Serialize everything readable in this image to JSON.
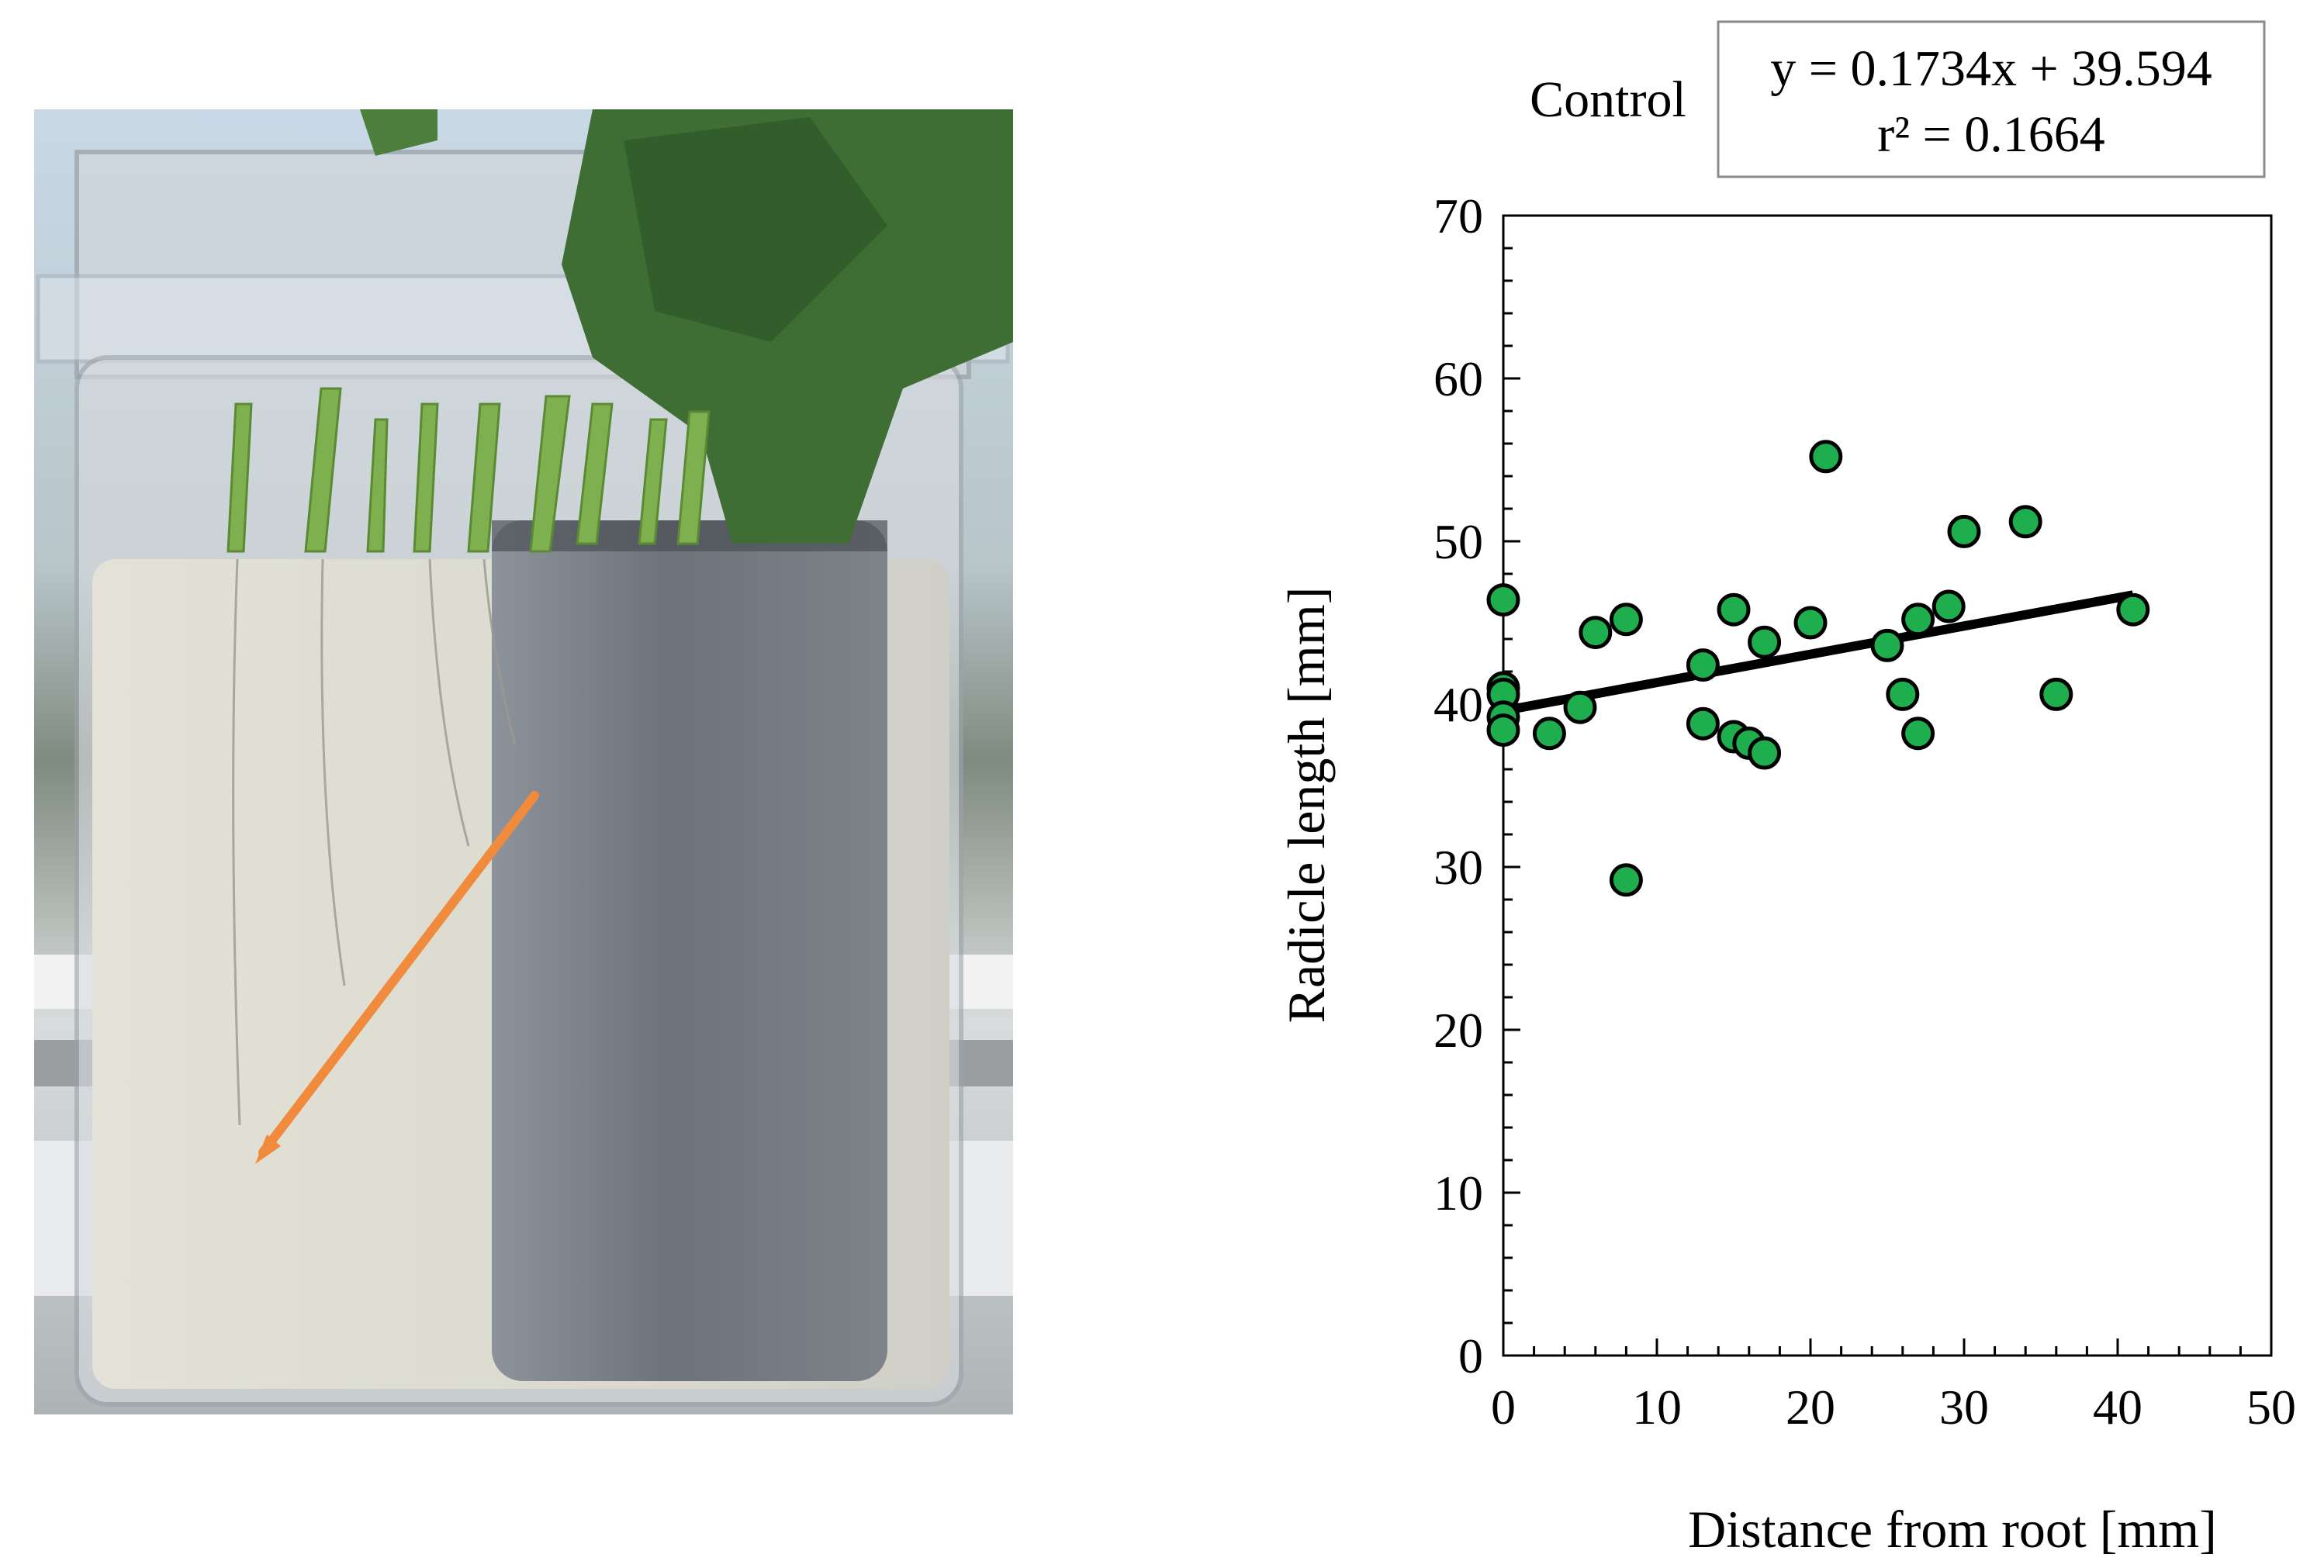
{
  "photo": {
    "description_icon": "hydroponic-seedling-container-photo",
    "arrow_color": "#f08a3c"
  },
  "chart_data": {
    "type": "scatter",
    "label": "Control",
    "equation": "y = 0.1734x + 39.594",
    "r_squared": "r² = 0.1664",
    "xlabel": "Distance from root [mm]",
    "ylabel": "Radicle length [mm]",
    "xlim": [
      0,
      50
    ],
    "ylim": [
      0,
      70
    ],
    "xticks": [
      0,
      10,
      20,
      30,
      40,
      50
    ],
    "yticks": [
      0,
      10,
      20,
      30,
      40,
      50,
      60,
      70
    ],
    "x_minor_step": 2,
    "y_minor_step": 2,
    "grid": false,
    "marker_color": "#1fae4e",
    "marker_edge": "#000000",
    "trendline": {
      "slope": 0.1734,
      "intercept": 39.594,
      "x_range": [
        0,
        41
      ],
      "color": "#000000"
    },
    "points": [
      {
        "x": 0,
        "y": 46.4
      },
      {
        "x": 0,
        "y": 41.0
      },
      {
        "x": 0,
        "y": 40.6
      },
      {
        "x": 0,
        "y": 39.2
      },
      {
        "x": 0,
        "y": 38.4
      },
      {
        "x": 3,
        "y": 38.2
      },
      {
        "x": 5,
        "y": 39.8
      },
      {
        "x": 6,
        "y": 44.4
      },
      {
        "x": 8,
        "y": 45.2
      },
      {
        "x": 8,
        "y": 29.2
      },
      {
        "x": 13,
        "y": 42.4
      },
      {
        "x": 13,
        "y": 38.8
      },
      {
        "x": 15,
        "y": 45.8
      },
      {
        "x": 15,
        "y": 38.0
      },
      {
        "x": 16,
        "y": 37.6
      },
      {
        "x": 17,
        "y": 43.8
      },
      {
        "x": 17,
        "y": 37.0
      },
      {
        "x": 20,
        "y": 45.0
      },
      {
        "x": 21,
        "y": 55.2
      },
      {
        "x": 25,
        "y": 43.6
      },
      {
        "x": 26,
        "y": 40.6
      },
      {
        "x": 27,
        "y": 45.2
      },
      {
        "x": 27,
        "y": 38.2
      },
      {
        "x": 29,
        "y": 46.0
      },
      {
        "x": 30,
        "y": 50.6
      },
      {
        "x": 34,
        "y": 51.2
      },
      {
        "x": 36,
        "y": 40.6
      },
      {
        "x": 41,
        "y": 45.8
      }
    ]
  }
}
